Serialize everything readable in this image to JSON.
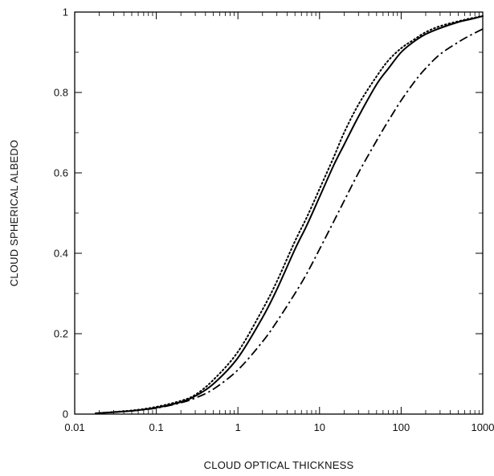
{
  "chart_data": {
    "type": "line",
    "xlabel": "CLOUD OPTICAL THICKNESS",
    "ylabel": "CLOUD SPHERICAL ALBEDO",
    "xscale": "log",
    "xlim": [
      0.01,
      1000
    ],
    "ylim": [
      0,
      1
    ],
    "xticks": [
      "0.01",
      "0.1",
      "1",
      "10",
      "100",
      "1000"
    ],
    "yticks": [
      "0",
      "0.2",
      "0.4",
      "0.6",
      "0.8",
      "1"
    ],
    "grid": false,
    "legend": "none",
    "series": [
      {
        "style": "solid",
        "color": "#000000",
        "points": [
          [
            0.018,
            0.002
          ],
          [
            0.05,
            0.008
          ],
          [
            0.1,
            0.016
          ],
          [
            0.2,
            0.03
          ],
          [
            0.3,
            0.045
          ],
          [
            0.5,
            0.075
          ],
          [
            1,
            0.14
          ],
          [
            2,
            0.24
          ],
          [
            3,
            0.31
          ],
          [
            5,
            0.41
          ],
          [
            7,
            0.47
          ],
          [
            10,
            0.54
          ],
          [
            15,
            0.62
          ],
          [
            20,
            0.67
          ],
          [
            30,
            0.74
          ],
          [
            50,
            0.82
          ],
          [
            70,
            0.86
          ],
          [
            100,
            0.9
          ],
          [
            140,
            0.925
          ],
          [
            200,
            0.945
          ],
          [
            300,
            0.96
          ],
          [
            500,
            0.975
          ],
          [
            700,
            0.982
          ],
          [
            1000,
            0.99
          ]
        ]
      },
      {
        "style": "dotted",
        "color": "#000000",
        "points": [
          [
            0.018,
            0.002
          ],
          [
            0.05,
            0.009
          ],
          [
            0.1,
            0.018
          ],
          [
            0.2,
            0.033
          ],
          [
            0.3,
            0.048
          ],
          [
            0.5,
            0.085
          ],
          [
            1,
            0.155
          ],
          [
            2,
            0.26
          ],
          [
            3,
            0.33
          ],
          [
            5,
            0.43
          ],
          [
            7,
            0.49
          ],
          [
            10,
            0.56
          ],
          [
            15,
            0.64
          ],
          [
            20,
            0.7
          ],
          [
            30,
            0.77
          ],
          [
            50,
            0.84
          ],
          [
            70,
            0.88
          ],
          [
            100,
            0.91
          ],
          [
            140,
            0.93
          ],
          [
            200,
            0.95
          ],
          [
            300,
            0.965
          ],
          [
            500,
            0.977
          ],
          [
            700,
            0.984
          ],
          [
            1000,
            0.99
          ]
        ]
      },
      {
        "style": "dashdot",
        "color": "#000000",
        "points": [
          [
            0.018,
            0.002
          ],
          [
            0.05,
            0.008
          ],
          [
            0.1,
            0.015
          ],
          [
            0.2,
            0.028
          ],
          [
            0.3,
            0.04
          ],
          [
            0.5,
            0.062
          ],
          [
            1,
            0.11
          ],
          [
            2,
            0.18
          ],
          [
            3,
            0.23
          ],
          [
            5,
            0.3
          ],
          [
            7,
            0.35
          ],
          [
            10,
            0.41
          ],
          [
            15,
            0.48
          ],
          [
            20,
            0.53
          ],
          [
            30,
            0.6
          ],
          [
            50,
            0.68
          ],
          [
            70,
            0.73
          ],
          [
            100,
            0.78
          ],
          [
            150,
            0.83
          ],
          [
            200,
            0.86
          ],
          [
            300,
            0.895
          ],
          [
            500,
            0.925
          ],
          [
            700,
            0.942
          ],
          [
            1000,
            0.958
          ]
        ]
      }
    ]
  }
}
